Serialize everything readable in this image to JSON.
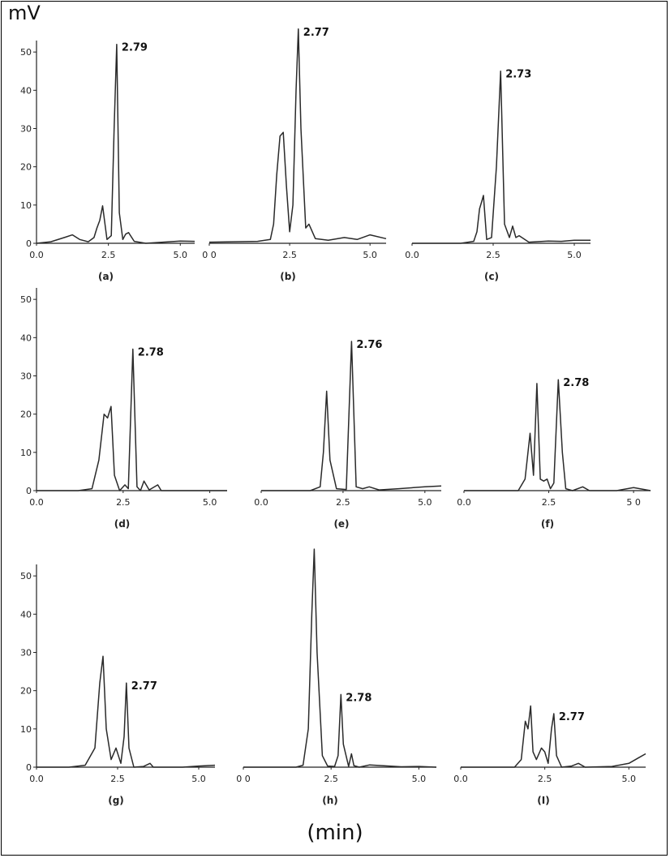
{
  "figure": {
    "y_unit": "mV",
    "x_unit": "(min)"
  },
  "chart_data": [
    {
      "type": "line",
      "panel_label": "(a)",
      "xticks": [
        "0.0",
        "2.5",
        "5.0"
      ],
      "yticks": [
        "0",
        "10",
        "20",
        "30",
        "40",
        "50"
      ],
      "xlim": [
        0,
        5.5
      ],
      "ylim": [
        0,
        53
      ],
      "peak_label": "2.79",
      "series": [
        {
          "x": [
            0,
            0.5,
            1.0,
            1.25,
            1.5,
            1.8,
            2.0,
            2.1,
            2.2,
            2.3,
            2.45,
            2.6,
            2.7,
            2.79,
            2.88,
            3.0,
            3.1,
            3.2,
            3.4,
            3.8,
            4.4,
            5.0,
            5.5
          ],
          "y": [
            0,
            0.4,
            1.6,
            2.2,
            1.0,
            0.4,
            1.5,
            4,
            6,
            9.8,
            1,
            2,
            30,
            52,
            8,
            1,
            2.4,
            2.8,
            0.5,
            0,
            0.3,
            0.6,
            0.5
          ]
        }
      ]
    },
    {
      "type": "line",
      "panel_label": "(b)",
      "xticks": [
        "0 0",
        "2.5",
        "5.0"
      ],
      "yticks": [],
      "xlim": [
        0,
        5.5
      ],
      "ylim": [
        0,
        53
      ],
      "peak_label": "2.77",
      "series": [
        {
          "x": [
            0,
            1.5,
            1.9,
            2.0,
            2.1,
            2.2,
            2.3,
            2.4,
            2.5,
            2.6,
            2.7,
            2.77,
            2.85,
            3.0,
            3.1,
            3.3,
            3.7,
            4.2,
            4.6,
            5.0,
            5.5
          ],
          "y": [
            0.3,
            0.5,
            1,
            5,
            18,
            28,
            29,
            15,
            3,
            10,
            40,
            56,
            30,
            4,
            5,
            1.2,
            0.8,
            1.5,
            1.0,
            2.2,
            1.2
          ]
        }
      ]
    },
    {
      "type": "line",
      "panel_label": "(c)",
      "xticks": [
        "0.0",
        "2.5",
        "5.0"
      ],
      "yticks": [],
      "xlim": [
        0,
        5.5
      ],
      "ylim": [
        0,
        53
      ],
      "peak_label": "2.73",
      "series": [
        {
          "x": [
            0,
            1.5,
            1.9,
            2.0,
            2.08,
            2.15,
            2.2,
            2.3,
            2.45,
            2.6,
            2.73,
            2.85,
            3.0,
            3.1,
            3.2,
            3.3,
            3.6,
            4.2,
            4.6,
            5.0,
            5.5
          ],
          "y": [
            0,
            0,
            0.5,
            3,
            9,
            11,
            12.5,
            1,
            1.5,
            20,
            45,
            5,
            1.5,
            4.5,
            1.5,
            2,
            0.3,
            0.6,
            0.5,
            0.8,
            0.8
          ]
        }
      ]
    },
    {
      "type": "line",
      "panel_label": "(d)",
      "xticks": [
        "0.0",
        "2.5",
        "5.0"
      ],
      "yticks": [
        "0",
        "10",
        "20",
        "30",
        "40",
        "50"
      ],
      "xlim": [
        0,
        5.5
      ],
      "ylim": [
        0,
        53
      ],
      "peak_label": "2.78",
      "series": [
        {
          "x": [
            0,
            1.2,
            1.6,
            1.8,
            1.95,
            2.05,
            2.15,
            2.25,
            2.4,
            2.55,
            2.65,
            2.78,
            2.9,
            3.0,
            3.1,
            3.25,
            3.5,
            3.6,
            4.5,
            5.0,
            5.5
          ],
          "y": [
            0,
            0,
            0.5,
            8,
            20,
            19,
            22,
            4,
            0,
            1.5,
            0.5,
            37,
            1,
            0,
            2.5,
            0.2,
            1.5,
            0,
            0,
            0,
            0
          ]
        }
      ]
    },
    {
      "type": "line",
      "panel_label": "(e)",
      "xticks": [
        "0.0",
        "2.5",
        "5.0"
      ],
      "yticks": [],
      "xlim": [
        0,
        5.5
      ],
      "ylim": [
        0,
        53
      ],
      "peak_label": "2.76",
      "series": [
        {
          "x": [
            0,
            1.5,
            1.8,
            1.9,
            2.0,
            2.1,
            2.3,
            2.6,
            2.76,
            2.9,
            3.1,
            3.3,
            3.6,
            4.2,
            5.0,
            5.5
          ],
          "y": [
            0,
            0,
            1,
            10,
            26,
            8,
            0.5,
            0.3,
            39,
            1,
            0.5,
            1,
            0.2,
            0.5,
            1.0,
            1.2
          ]
        }
      ]
    },
    {
      "type": "line",
      "panel_label": "(f)",
      "xticks": [
        "0.0",
        "2.5",
        "5 0"
      ],
      "yticks": [],
      "xlim": [
        0,
        5.5
      ],
      "ylim": [
        0,
        53
      ],
      "peak_label": "2.78",
      "series": [
        {
          "x": [
            0,
            1.6,
            1.8,
            1.95,
            2.05,
            2.15,
            2.25,
            2.35,
            2.45,
            2.55,
            2.65,
            2.78,
            2.9,
            3.0,
            3.2,
            3.5,
            3.7,
            4.5,
            5.0,
            5.5
          ],
          "y": [
            0,
            0,
            3,
            15,
            4,
            28,
            3,
            2.5,
            3,
            0.5,
            2,
            29,
            10,
            0.5,
            0,
            1,
            0,
            0,
            0.8,
            0
          ]
        }
      ]
    },
    {
      "type": "line",
      "panel_label": "(g)",
      "xticks": [
        "0.0",
        "2.5",
        "5.0"
      ],
      "yticks": [
        "0",
        "10",
        "20",
        "30",
        "40",
        "50"
      ],
      "xlim": [
        0,
        5.5
      ],
      "ylim": [
        0,
        53
      ],
      "peak_label": "2.77",
      "series": [
        {
          "x": [
            0,
            1.0,
            1.5,
            1.8,
            1.95,
            2.05,
            2.15,
            2.3,
            2.45,
            2.6,
            2.7,
            2.77,
            2.85,
            3.0,
            3.3,
            3.5,
            3.6,
            4.5,
            5.0,
            5.5
          ],
          "y": [
            0,
            0,
            0.5,
            5,
            22,
            29,
            10,
            2,
            5,
            1,
            8,
            22,
            5,
            0,
            0.2,
            1,
            0,
            0,
            0.3,
            0.5
          ]
        }
      ]
    },
    {
      "type": "line",
      "panel_label": "(h)",
      "xticks": [
        "0 0",
        "2.5",
        "5.0"
      ],
      "yticks": [],
      "xlim": [
        0,
        5.5
      ],
      "ylim": [
        0,
        53
      ],
      "peak_label": "2.78",
      "series": [
        {
          "x": [
            0,
            1.5,
            1.7,
            1.85,
            1.95,
            2.02,
            2.1,
            2.25,
            2.4,
            2.6,
            2.7,
            2.78,
            2.85,
            3.0,
            3.08,
            3.15,
            3.3,
            3.6,
            4.5,
            5.0,
            5.5
          ],
          "y": [
            0,
            0,
            0.5,
            10,
            40,
            57,
            30,
            3,
            0.3,
            0.2,
            3,
            19,
            6,
            0.2,
            3.5,
            0.4,
            0,
            0.6,
            0.1,
            0.2,
            0
          ]
        }
      ]
    },
    {
      "type": "line",
      "panel_label": "(I)",
      "xticks": [
        "0.0",
        "2.5",
        "5.0"
      ],
      "yticks": [],
      "xlim": [
        0,
        5.5
      ],
      "ylim": [
        0,
        53
      ],
      "peak_label": "2.77",
      "series": [
        {
          "x": [
            0,
            1.6,
            1.8,
            1.92,
            2.0,
            2.08,
            2.15,
            2.25,
            2.4,
            2.5,
            2.6,
            2.7,
            2.77,
            2.85,
            3.0,
            3.3,
            3.5,
            3.7,
            4.5,
            5.0,
            5.3,
            5.5
          ],
          "y": [
            0,
            0,
            2,
            12,
            10,
            16,
            4,
            2,
            5,
            4,
            1,
            10,
            14,
            3,
            0,
            0.3,
            1,
            0,
            0.2,
            1.0,
            2.5,
            3.5
          ]
        }
      ]
    }
  ]
}
